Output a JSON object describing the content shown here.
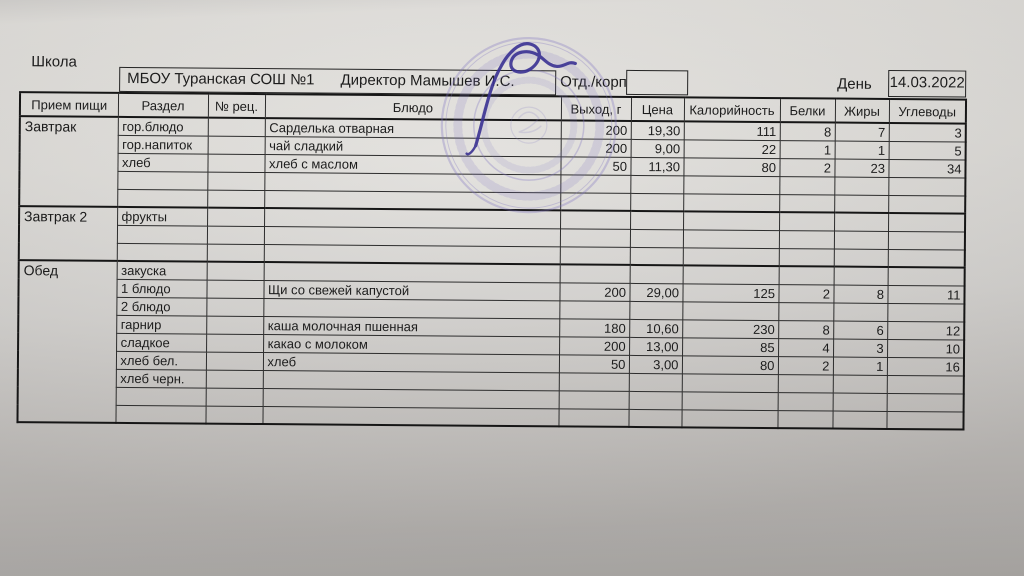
{
  "header": {
    "school_label": "Школа",
    "school_name": "МБОУ Туранская СОШ №1",
    "director": "Директор Мамышев И.С.",
    "dept_label": "Отд./корп",
    "dept_value": "",
    "day_label": "День",
    "day_value": "14.03.2022"
  },
  "table": {
    "headers": [
      "Прием пищи",
      "Раздел",
      "№ рец.",
      "Блюдо",
      "Выход, г",
      "Цена",
      "Калорийность",
      "Белки",
      "Жиры",
      "Углеводы"
    ],
    "sections": [
      {
        "meal": "Завтрак",
        "rows": [
          {
            "razdel": "гор.блюдо",
            "blyudo": "Сарделька отварная",
            "vyhod": "200",
            "cena": "19,30",
            "kalor": "111",
            "belki": "8",
            "zhiry": "7",
            "uglevody": "3"
          },
          {
            "razdel": "гор.напиток",
            "blyudo": "чай сладкий",
            "vyhod": "200",
            "cena": "9,00",
            "kalor": "22",
            "belki": "1",
            "zhiry": "1",
            "uglevody": "5"
          },
          {
            "razdel": "хлеб",
            "blyudo": "хлеб с маслом",
            "vyhod": "50",
            "cena": "11,30",
            "kalor": "80",
            "belki": "2",
            "zhiry": "23",
            "uglevody": "34"
          },
          {},
          {}
        ]
      },
      {
        "meal": "Завтрак 2",
        "rows": [
          {
            "razdel": "фрукты"
          },
          {},
          {}
        ]
      },
      {
        "meal": "Обед",
        "rows": [
          {
            "razdel": "закуска"
          },
          {
            "razdel": "1 блюдо",
            "blyudo": "Щи со свежей капустой",
            "vyhod": "200",
            "cena": "29,00",
            "kalor": "125",
            "belki": "2",
            "zhiry": "8",
            "uglevody": "11"
          },
          {
            "razdel": "2 блюдо"
          },
          {
            "razdel": "гарнир",
            "blyudo": "каша молочная пшенная",
            "vyhod": "180",
            "cena": "10,60",
            "kalor": "230",
            "belki": "8",
            "zhiry": "6",
            "uglevody": "12"
          },
          {
            "razdel": "сладкое",
            "blyudo": "какао с молоком",
            "vyhod": "200",
            "cena": "13,00",
            "kalor": "85",
            "belki": "4",
            "zhiry": "3",
            "uglevody": "10"
          },
          {
            "razdel": "хлеб бел.",
            "blyudo": "хлеб",
            "vyhod": "50",
            "cena": "3,00",
            "kalor": "80",
            "belki": "2",
            "zhiry": "1",
            "uglevody": "16"
          },
          {
            "razdel": "хлеб черн."
          },
          {},
          {}
        ]
      }
    ]
  },
  "stamp": {
    "ink_color": "#8075c0",
    "signature_color": "#3a3192"
  }
}
